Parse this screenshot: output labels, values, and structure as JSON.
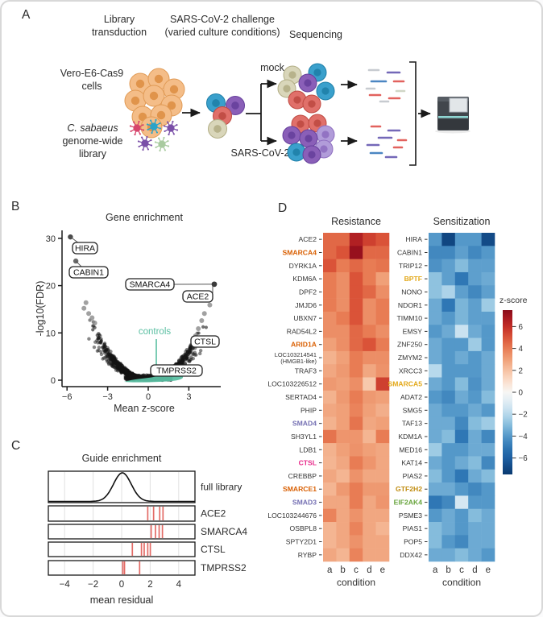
{
  "panels": {
    "a": "A",
    "b": "B",
    "c": "C",
    "d": "D"
  },
  "panelA": {
    "col1_line1": "Library",
    "col1_line2": "transduction",
    "col2_line1": "SARS-CoV-2 challenge",
    "col2_line2": "(varied culture conditions)",
    "col3": "Sequencing",
    "cells_line1": "Vero-E6-Cas9",
    "cells_line2": "cells",
    "lib_line1": "C. sabaeus",
    "lib_line2": "genome-wide",
    "lib_line3": "library",
    "mock_label": "mock",
    "sars_label": "SARS-CoV-2",
    "palette": {
      "cell_orange": "#f4bd88",
      "cell_orange_stroke": "#e09a55",
      "cell_orange_nucleus": "#de8f45",
      "cell_blue": "#3aa0cc",
      "cell_blue_nucleus": "#1f7fa8",
      "cell_purple": "#8a5fb8",
      "cell_purple_nucleus": "#66409c",
      "cell_lpurple": "#b19cd9",
      "cell_lpurple_nucleus": "#8f6fc0",
      "cell_red": "#e0706a",
      "cell_red_nucleus": "#bf4a42",
      "cell_olive": "#d9d6ba",
      "cell_olive_nucleus": "#b2ae86",
      "virus_red": "#d6456b",
      "virus_blue": "#2aa3c9",
      "virus_purple": "#7a4fa8",
      "virus_green": "#a9cba0",
      "read_gray": "#c7cbd0",
      "read_purple": "#7468b8",
      "read_blue": "#4b86c2",
      "read_red": "#e2625e",
      "read_pale": "#d0d6c6",
      "arrow": "#1a1a1a",
      "seq_body": "#41464c",
      "seq_body_dark": "#34383d",
      "seq_top": "#565c63",
      "seq_screen": "#e2e6e9",
      "seq_teal": "#8fd6d2"
    }
  },
  "heatmap_colormap": [
    [
      -7.5,
      "#0a3a70"
    ],
    [
      -6,
      "#1d5fa2"
    ],
    [
      -5,
      "#2f77b5"
    ],
    [
      -4,
      "#5498c9"
    ],
    [
      -3,
      "#85bcdc"
    ],
    [
      -2,
      "#b7d9ec"
    ],
    [
      -1,
      "#dcebf4"
    ],
    [
      0,
      "#f7f6f4"
    ],
    [
      1,
      "#fbe0cd"
    ],
    [
      2,
      "#f6c3a4"
    ],
    [
      3,
      "#f0a078"
    ],
    [
      4,
      "#e87c54"
    ],
    [
      5,
      "#da5338"
    ],
    [
      6,
      "#c22d26"
    ],
    [
      7,
      "#a0121f"
    ],
    [
      7.5,
      "#8a0c1a"
    ]
  ],
  "chart_data": [
    {
      "type": "scatter",
      "panel": "B",
      "title": "Gene enrichment",
      "xlabel": "Mean z-score",
      "ylabel": "-log10(FDR)",
      "xticks": [
        -6,
        -3,
        0,
        3
      ],
      "yticks": [
        0,
        10,
        20,
        30
      ],
      "xlim": [
        -6.3,
        5.3
      ],
      "ylim": [
        -1.2,
        31.5
      ],
      "labeled_points": [
        {
          "gene": "HIRA",
          "x": -5.75,
          "y": 30.3
        },
        {
          "gene": "CABIN1",
          "x": -5.35,
          "y": 25.2
        },
        {
          "gene": "SMARCA4",
          "x": 4.88,
          "y": 20.3
        },
        {
          "gene": "ACE2",
          "x": 4.88,
          "y": 20.3
        },
        {
          "gene": "CTSL",
          "x": 2.95,
          "y": 7.6
        },
        {
          "gene": "TMPRSS2",
          "x": 1.9,
          "y": 2.3
        }
      ],
      "outlier_points": [
        [
          -4.6,
          16.4
        ],
        [
          -4.75,
          15.2
        ],
        [
          -4.4,
          14.1
        ],
        [
          -4.15,
          13.2
        ],
        [
          -3.95,
          12.1
        ],
        [
          4.55,
          15.9
        ],
        [
          4.15,
          14.1
        ],
        [
          3.95,
          12.6
        ],
        [
          3.7,
          10.9
        ],
        [
          3.5,
          9.4
        ]
      ],
      "annotation_label": "controls",
      "annotation_color": "#5abfa2",
      "cloud": {
        "n": 1400,
        "seed": 7,
        "coeff": 0.73
      },
      "point_color": "#141414"
    },
    {
      "type": "density-rug",
      "panel": "C",
      "title": "Guide enrichment",
      "xlabel": "mean residual",
      "xticks": [
        -4,
        -2,
        0,
        2,
        4
      ],
      "xlim": [
        -5.15,
        5.15
      ],
      "rows": [
        {
          "label": "full library",
          "kind": "density",
          "mu": 0.05,
          "sigma": 0.62
        },
        {
          "label": "ACE2",
          "kind": "rug",
          "guides": [
            1.83,
            2.24,
            2.67,
            2.9
          ]
        },
        {
          "label": "SMARCA4",
          "kind": "rug",
          "guides": [
            2.07,
            2.37,
            2.63,
            2.86
          ]
        },
        {
          "label": "CTSL",
          "kind": "rug",
          "guides": [
            0.75,
            1.39,
            1.58,
            1.83,
            2.01
          ]
        },
        {
          "label": "TMPRSS2",
          "kind": "rug",
          "guides": [
            0.08,
            0.2,
            1.26
          ]
        }
      ],
      "rug_color": "#e36b66",
      "curve_color": "#111111"
    },
    {
      "type": "heatmap",
      "panel": "D-left",
      "title": "Resistance",
      "xlabel": "condition",
      "conditions": [
        "a",
        "b",
        "c",
        "d",
        "e"
      ],
      "rows": [
        {
          "gene": "ACE2",
          "values": [
            4.5,
            4.5,
            6.5,
            5.5,
            5.0
          ]
        },
        {
          "gene": "SMARCA4",
          "color": "#d95f02",
          "values": [
            4.5,
            5.0,
            7.2,
            4.5,
            4.5
          ]
        },
        {
          "gene": "DYRK1A",
          "values": [
            5.0,
            4.0,
            4.5,
            4.0,
            4.2
          ]
        },
        {
          "gene": "KDM6A",
          "values": [
            4.0,
            3.5,
            5.0,
            4.0,
            3.0
          ]
        },
        {
          "gene": "DPF2",
          "values": [
            4.0,
            3.5,
            5.0,
            4.5,
            3.5
          ]
        },
        {
          "gene": "JMJD6",
          "values": [
            4.0,
            3.5,
            5.0,
            3.5,
            4.0
          ]
        },
        {
          "gene": "UBXN7",
          "values": [
            3.5,
            4.0,
            5.0,
            3.5,
            4.0
          ]
        },
        {
          "gene": "RAD54L2",
          "values": [
            3.5,
            3.5,
            4.5,
            4.0,
            3.5
          ]
        },
        {
          "gene": "ARID1A",
          "color": "#d95f02",
          "values": [
            3.0,
            3.5,
            4.5,
            5.0,
            4.0
          ]
        },
        {
          "gene": "LOC103214541",
          "gene2": "(HMGB1-like)",
          "values": [
            2.5,
            3.0,
            4.0,
            3.5,
            3.5
          ]
        },
        {
          "gene": "TRAF3",
          "values": [
            2.8,
            3.2,
            4.0,
            2.8,
            3.4
          ]
        },
        {
          "gene": "LOC103226512",
          "values": [
            3.2,
            3.0,
            3.5,
            1.8,
            5.5
          ]
        },
        {
          "gene": "SERTAD4",
          "values": [
            2.5,
            3.2,
            4.0,
            3.2,
            3.0
          ]
        },
        {
          "gene": "PHIP",
          "values": [
            2.8,
            3.0,
            3.8,
            3.0,
            2.6
          ]
        },
        {
          "gene": "SMAD4",
          "color": "#7570b3",
          "values": [
            2.5,
            3.0,
            4.2,
            2.8,
            3.0
          ]
        },
        {
          "gene": "SH3YL1",
          "values": [
            4.2,
            3.3,
            3.3,
            2.4,
            4.0
          ]
        },
        {
          "gene": "LDB1",
          "values": [
            2.5,
            3.0,
            3.4,
            3.0,
            2.8
          ]
        },
        {
          "gene": "CTSL",
          "color": "#e7298a",
          "values": [
            2.4,
            2.8,
            4.0,
            3.3,
            2.8
          ]
        },
        {
          "gene": "CREBBP",
          "values": [
            2.8,
            2.4,
            3.4,
            2.8,
            2.8
          ]
        },
        {
          "gene": "SMARCE1",
          "color": "#d95f02",
          "values": [
            2.4,
            3.2,
            4.0,
            3.2,
            3.2
          ]
        },
        {
          "gene": "SMAD3",
          "color": "#7570b3",
          "values": [
            2.8,
            2.8,
            4.0,
            2.8,
            3.3
          ]
        },
        {
          "gene": "LOC103244676",
          "values": [
            3.8,
            2.8,
            3.4,
            2.8,
            2.8
          ]
        },
        {
          "gene": "OSBPL8",
          "values": [
            2.4,
            2.8,
            3.8,
            2.8,
            2.4
          ]
        },
        {
          "gene": "SPTY2D1",
          "values": [
            2.4,
            2.8,
            3.4,
            2.8,
            2.8
          ]
        },
        {
          "gene": "RYBP",
          "values": [
            2.8,
            2.4,
            3.8,
            2.8,
            2.8
          ]
        }
      ]
    },
    {
      "type": "heatmap",
      "panel": "D-right",
      "title": "Sensitization",
      "xlabel": "condition",
      "conditions": [
        "a",
        "b",
        "c",
        "d",
        "e"
      ],
      "colorbar": {
        "label": "z-score",
        "ticks": [
          6,
          4,
          2,
          0,
          -2,
          -4,
          -6
        ],
        "range": [
          -7.5,
          7.5
        ]
      },
      "rows": [
        {
          "gene": "HIRA",
          "values": [
            -4.0,
            -7.0,
            -4.0,
            -4.0,
            -6.8
          ]
        },
        {
          "gene": "CABIN1",
          "values": [
            -4.5,
            -4.5,
            -3.8,
            -4.5,
            -4.0
          ]
        },
        {
          "gene": "TRIP12",
          "values": [
            -4.2,
            -3.8,
            -3.0,
            -3.8,
            -3.8
          ]
        },
        {
          "gene": "BPTF",
          "color": "#e3a818",
          "values": [
            -2.8,
            -3.8,
            -5.0,
            -3.8,
            -3.5
          ]
        },
        {
          "gene": "NONO",
          "values": [
            -2.8,
            -2.2,
            -3.8,
            -4.5,
            -3.8
          ]
        },
        {
          "gene": "NDOR1",
          "values": [
            -3.5,
            -5.0,
            -3.2,
            -3.8,
            -2.5
          ]
        },
        {
          "gene": "TIMM10",
          "values": [
            -3.5,
            -4.0,
            -3.2,
            -3.8,
            -3.8
          ]
        },
        {
          "gene": "EMSY",
          "values": [
            -4.0,
            -3.5,
            -1.5,
            -3.5,
            -4.0
          ]
        },
        {
          "gene": "ZNF250",
          "values": [
            -3.5,
            -4.0,
            -4.0,
            -2.5,
            -4.0
          ]
        },
        {
          "gene": "ZMYM2",
          "values": [
            -3.5,
            -4.0,
            -3.5,
            -4.0,
            -3.5
          ]
        },
        {
          "gene": "XRCC3",
          "values": [
            -2.0,
            -4.0,
            -4.0,
            -4.0,
            -3.5
          ]
        },
        {
          "gene": "SMARCA5",
          "color": "#e3a818",
          "values": [
            -3.5,
            -4.0,
            -3.0,
            -4.2,
            -3.5
          ]
        },
        {
          "gene": "ADAT2",
          "values": [
            -4.0,
            -4.5,
            -3.5,
            -4.0,
            -3.0
          ]
        },
        {
          "gene": "SMG5",
          "values": [
            -3.5,
            -4.0,
            -4.0,
            -3.5,
            -4.0
          ]
        },
        {
          "gene": "TAF13",
          "values": [
            -3.5,
            -3.5,
            -4.5,
            -3.0,
            -2.5
          ]
        },
        {
          "gene": "KDM1A",
          "values": [
            -3.5,
            -3.0,
            -5.0,
            -3.5,
            -4.5
          ]
        },
        {
          "gene": "MED16",
          "values": [
            -2.5,
            -4.0,
            -4.0,
            -3.5,
            -3.5
          ]
        },
        {
          "gene": "KAT14",
          "values": [
            -3.5,
            -4.0,
            -3.5,
            -3.0,
            -4.5
          ]
        },
        {
          "gene": "PIAS2",
          "values": [
            -3.0,
            -4.0,
            -5.0,
            -3.5,
            -3.0
          ]
        },
        {
          "gene": "GTF2H2",
          "color": "#c08c10",
          "values": [
            -3.5,
            -3.5,
            -4.0,
            -4.5,
            -4.0
          ]
        },
        {
          "gene": "EIF2AK4",
          "color": "#67a43c",
          "values": [
            -5.0,
            -4.5,
            -1.2,
            -4.0,
            -4.0
          ]
        },
        {
          "gene": "PSME3",
          "values": [
            -4.0,
            -3.5,
            -4.0,
            -3.0,
            -3.5
          ]
        },
        {
          "gene": "PIAS1",
          "values": [
            -3.0,
            -3.5,
            -4.0,
            -3.5,
            -3.5
          ]
        },
        {
          "gene": "POP5",
          "values": [
            -3.0,
            -4.0,
            -4.5,
            -3.5,
            -3.5
          ]
        },
        {
          "gene": "DDX42",
          "values": [
            -3.5,
            -3.5,
            -3.0,
            -3.5,
            -4.0
          ]
        }
      ]
    }
  ]
}
